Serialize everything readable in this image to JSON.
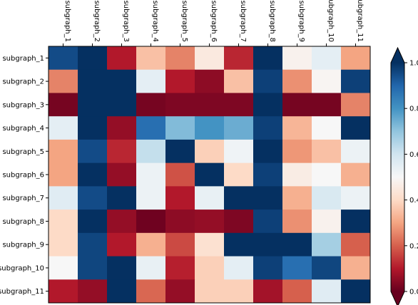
{
  "chart_data": {
    "type": "heatmap",
    "title": "",
    "xlabel": "",
    "ylabel": "",
    "x_categories": [
      "subgraph_1",
      "subgraph_2",
      "subgraph_3",
      "subgraph_4",
      "subgraph_5",
      "subgraph_6",
      "subgraph_7",
      "subgraph_8",
      "subgraph_9",
      "subgraph_10",
      "subgraph_11"
    ],
    "y_categories": [
      "subgraph_1",
      "subgraph_2",
      "subgraph_3",
      "subgraph_4",
      "subgraph_5",
      "subgraph_6",
      "subgraph_7",
      "subgraph_8",
      "subgraph_9",
      "subgraph_10",
      "subgraph_11"
    ],
    "values": [
      [
        0.95,
        1.0,
        0.1,
        0.35,
        0.25,
        0.45,
        0.12,
        1.0,
        0.48,
        0.55,
        0.3
      ],
      [
        0.25,
        1.0,
        1.0,
        0.55,
        0.1,
        0.05,
        0.35,
        0.97,
        0.27,
        0.49,
        0.97
      ],
      [
        0.02,
        1.0,
        1.0,
        0.02,
        0.03,
        0.03,
        0.03,
        1.0,
        0.02,
        0.02,
        0.25
      ],
      [
        0.55,
        1.0,
        0.06,
        0.88,
        0.72,
        0.8,
        0.75,
        0.97,
        0.33,
        0.5,
        1.0
      ],
      [
        0.3,
        0.95,
        0.12,
        0.62,
        1.0,
        0.38,
        0.52,
        1.0,
        0.28,
        0.35,
        0.53
      ],
      [
        0.3,
        1.0,
        0.06,
        0.53,
        0.18,
        1.0,
        0.4,
        0.97,
        0.46,
        0.5,
        0.32
      ],
      [
        0.56,
        0.95,
        1.0,
        0.53,
        0.1,
        0.54,
        1.0,
        1.0,
        0.32,
        0.58,
        0.53
      ],
      [
        0.4,
        1.0,
        0.06,
        0.01,
        0.05,
        0.06,
        0.03,
        0.97,
        0.27,
        0.48,
        1.0
      ],
      [
        0.4,
        0.96,
        0.1,
        0.32,
        0.17,
        0.42,
        1.0,
        1.0,
        1.0,
        0.67,
        0.2
      ],
      [
        0.5,
        0.96,
        1.0,
        0.54,
        0.11,
        0.38,
        0.55,
        0.97,
        0.88,
        0.96,
        0.32
      ],
      [
        0.1,
        0.06,
        1.0,
        0.21,
        0.06,
        0.38,
        0.38,
        0.08,
        0.2,
        0.56,
        1.0
      ]
    ],
    "colorbar": {
      "ticks": [
        "0.0",
        "0.2",
        "0.4",
        "0.6",
        "0.8",
        "1.0"
      ],
      "range": [
        0.0,
        1.0
      ],
      "colormap": "RdBu",
      "extend": "both"
    },
    "colors": [
      "#67001f",
      "#b2182b",
      "#d6604d",
      "#f4a582",
      "#fddbc7",
      "#f7f7f7",
      "#d1e5f0",
      "#92c5de",
      "#4393c3",
      "#2166ac",
      "#053061"
    ],
    "grid": false,
    "legend": "colorbar-right"
  }
}
